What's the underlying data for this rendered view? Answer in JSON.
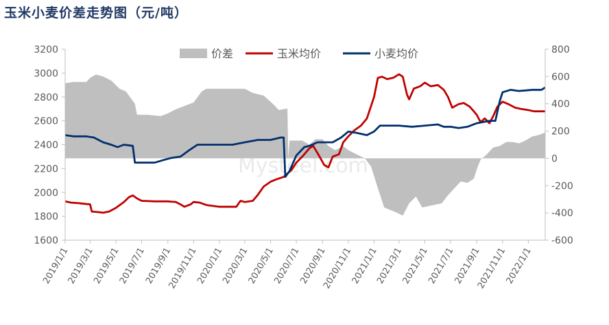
{
  "title": "玉米小麦价差走势图（元/吨）",
  "chart_data": {
    "type": "line",
    "title": "玉米小麦价差走势图（元/吨）",
    "watermark": "Mysteel.com",
    "x_tick_labels": [
      "2019/1/1",
      "2019/3/1",
      "2019/5/1",
      "2019/7/1",
      "2019/9/1",
      "2019/11/1",
      "2020/1/1",
      "2020/3/1",
      "2020/5/1",
      "2020/7/1",
      "2020/9/1",
      "2020/11/1",
      "2021/1/1",
      "2021/3/1",
      "2021/5/1",
      "2021/7/1",
      "2021/9/1",
      "2021/11/1",
      "2022/1/1"
    ],
    "x_range": [
      "2019-01-01",
      "2022-02-10"
    ],
    "y_left": {
      "range": [
        1600,
        3200
      ],
      "ticks": [
        1600,
        1800,
        2000,
        2200,
        2400,
        2600,
        2800,
        3000,
        3200
      ]
    },
    "y_right": {
      "range": [
        -600,
        800
      ],
      "ticks": [
        -600,
        -400,
        -200,
        0,
        200,
        400,
        600,
        800
      ]
    },
    "legend": {
      "position": "top",
      "entries": [
        "价差",
        "玉米均价",
        "小麦均价"
      ]
    },
    "grid": false,
    "series": [
      {
        "name": "价差",
        "type": "area",
        "axis": "right",
        "color": "#bfbfbf",
        "points": [
          [
            "2019-01-01",
            550
          ],
          [
            "2019-01-20",
            560
          ],
          [
            "2019-02-20",
            560
          ],
          [
            "2019-03-01",
            590
          ],
          [
            "2019-03-15",
            615
          ],
          [
            "2019-04-01",
            600
          ],
          [
            "2019-04-20",
            570
          ],
          [
            "2019-05-10",
            510
          ],
          [
            "2019-05-25",
            490
          ],
          [
            "2019-06-15",
            400
          ],
          [
            "2019-06-20",
            320
          ],
          [
            "2019-07-15",
            320
          ],
          [
            "2019-08-15",
            310
          ],
          [
            "2019-09-01",
            330
          ],
          [
            "2019-09-20",
            360
          ],
          [
            "2019-10-15",
            390
          ],
          [
            "2019-11-01",
            410
          ],
          [
            "2019-11-20",
            490
          ],
          [
            "2019-12-01",
            510
          ],
          [
            "2020-01-01",
            510
          ],
          [
            "2020-02-01",
            510
          ],
          [
            "2020-03-01",
            510
          ],
          [
            "2020-03-20",
            480
          ],
          [
            "2020-04-15",
            460
          ],
          [
            "2020-05-10",
            390
          ],
          [
            "2020-05-20",
            355
          ],
          [
            "2020-06-10",
            365
          ],
          [
            "2020-06-12",
            0
          ],
          [
            "2020-06-15",
            130
          ],
          [
            "2020-07-15",
            130
          ],
          [
            "2020-08-01",
            100
          ],
          [
            "2020-08-15",
            140
          ],
          [
            "2020-09-01",
            140
          ],
          [
            "2020-09-15",
            90
          ],
          [
            "2020-10-01",
            60
          ],
          [
            "2020-10-20",
            90
          ],
          [
            "2020-11-01",
            60
          ],
          [
            "2020-11-20",
            30
          ],
          [
            "2020-12-10",
            0
          ],
          [
            "2020-12-25",
            -60
          ],
          [
            "2021-01-10",
            -220
          ],
          [
            "2021-01-25",
            -360
          ],
          [
            "2021-02-10",
            -380
          ],
          [
            "2021-02-25",
            -400
          ],
          [
            "2021-03-10",
            -420
          ],
          [
            "2021-03-25",
            -330
          ],
          [
            "2021-04-10",
            -280
          ],
          [
            "2021-04-25",
            -360
          ],
          [
            "2021-05-10",
            -350
          ],
          [
            "2021-05-25",
            -340
          ],
          [
            "2021-06-10",
            -330
          ],
          [
            "2021-06-25",
            -270
          ],
          [
            "2021-07-10",
            -220
          ],
          [
            "2021-07-25",
            -170
          ],
          [
            "2021-08-10",
            -180
          ],
          [
            "2021-08-25",
            -150
          ],
          [
            "2021-09-01",
            -80
          ],
          [
            "2021-09-10",
            -10
          ],
          [
            "2021-09-25",
            30
          ],
          [
            "2021-10-10",
            80
          ],
          [
            "2021-10-25",
            90
          ],
          [
            "2021-11-10",
            120
          ],
          [
            "2021-11-25",
            120
          ],
          [
            "2021-12-10",
            110
          ],
          [
            "2021-12-25",
            130
          ],
          [
            "2022-01-10",
            160
          ],
          [
            "2022-01-25",
            170
          ],
          [
            "2022-02-10",
            190
          ]
        ]
      },
      {
        "name": "玉米均价",
        "type": "line",
        "axis": "left",
        "color": "#c00000",
        "points": [
          [
            "2019-01-01",
            1925
          ],
          [
            "2019-01-15",
            1915
          ],
          [
            "2019-02-01",
            1910
          ],
          [
            "2019-02-15",
            1905
          ],
          [
            "2019-03-01",
            1900
          ],
          [
            "2019-03-05",
            1840
          ],
          [
            "2019-03-20",
            1835
          ],
          [
            "2019-04-01",
            1830
          ],
          [
            "2019-04-15",
            1840
          ],
          [
            "2019-05-01",
            1870
          ],
          [
            "2019-05-20",
            1920
          ],
          [
            "2019-06-01",
            1960
          ],
          [
            "2019-06-10",
            1975
          ],
          [
            "2019-06-20",
            1950
          ],
          [
            "2019-07-01",
            1930
          ],
          [
            "2019-08-01",
            1925
          ],
          [
            "2019-09-01",
            1925
          ],
          [
            "2019-09-20",
            1920
          ],
          [
            "2019-10-01",
            1900
          ],
          [
            "2019-10-10",
            1880
          ],
          [
            "2019-10-25",
            1900
          ],
          [
            "2019-11-01",
            1920
          ],
          [
            "2019-11-15",
            1915
          ],
          [
            "2019-12-01",
            1895
          ],
          [
            "2020-01-01",
            1880
          ],
          [
            "2020-02-01",
            1880
          ],
          [
            "2020-02-10",
            1880
          ],
          [
            "2020-02-20",
            1930
          ],
          [
            "2020-03-01",
            1920
          ],
          [
            "2020-03-20",
            1930
          ],
          [
            "2020-04-01",
            1980
          ],
          [
            "2020-04-15",
            2050
          ],
          [
            "2020-05-01",
            2090
          ],
          [
            "2020-05-15",
            2110
          ],
          [
            "2020-06-01",
            2130
          ],
          [
            "2020-06-20",
            2190
          ],
          [
            "2020-07-01",
            2250
          ],
          [
            "2020-07-15",
            2300
          ],
          [
            "2020-08-01",
            2370
          ],
          [
            "2020-08-10",
            2390
          ],
          [
            "2020-08-25",
            2300
          ],
          [
            "2020-09-05",
            2230
          ],
          [
            "2020-09-15",
            2210
          ],
          [
            "2020-09-25",
            2300
          ],
          [
            "2020-10-10",
            2320
          ],
          [
            "2020-10-20",
            2420
          ],
          [
            "2020-11-01",
            2470
          ],
          [
            "2020-11-15",
            2520
          ],
          [
            "2020-12-01",
            2560
          ],
          [
            "2020-12-15",
            2620
          ],
          [
            "2021-01-01",
            2800
          ],
          [
            "2021-01-10",
            2960
          ],
          [
            "2021-01-20",
            2970
          ],
          [
            "2021-02-01",
            2950
          ],
          [
            "2021-02-15",
            2960
          ],
          [
            "2021-03-01",
            2990
          ],
          [
            "2021-03-10",
            2970
          ],
          [
            "2021-03-20",
            2820
          ],
          [
            "2021-03-25",
            2780
          ],
          [
            "2021-04-05",
            2870
          ],
          [
            "2021-04-20",
            2890
          ],
          [
            "2021-05-01",
            2920
          ],
          [
            "2021-05-15",
            2890
          ],
          [
            "2021-06-01",
            2900
          ],
          [
            "2021-06-15",
            2860
          ],
          [
            "2021-06-25",
            2800
          ],
          [
            "2021-07-05",
            2710
          ],
          [
            "2021-07-20",
            2740
          ],
          [
            "2021-08-01",
            2750
          ],
          [
            "2021-08-15",
            2720
          ],
          [
            "2021-08-25",
            2680
          ],
          [
            "2021-09-01",
            2650
          ],
          [
            "2021-09-10",
            2590
          ],
          [
            "2021-09-20",
            2620
          ],
          [
            "2021-10-01",
            2580
          ],
          [
            "2021-10-10",
            2640
          ],
          [
            "2021-10-20",
            2720
          ],
          [
            "2021-11-01",
            2760
          ],
          [
            "2021-11-15",
            2740
          ],
          [
            "2021-12-01",
            2710
          ],
          [
            "2021-12-15",
            2700
          ],
          [
            "2022-01-01",
            2690
          ],
          [
            "2022-01-15",
            2680
          ],
          [
            "2022-02-10",
            2680
          ]
        ]
      },
      {
        "name": "小麦均价",
        "type": "line",
        "axis": "left",
        "color": "#002f6c",
        "points": [
          [
            "2019-01-01",
            2480
          ],
          [
            "2019-01-20",
            2470
          ],
          [
            "2019-02-20",
            2470
          ],
          [
            "2019-03-10",
            2460
          ],
          [
            "2019-04-01",
            2420
          ],
          [
            "2019-04-20",
            2400
          ],
          [
            "2019-05-05",
            2380
          ],
          [
            "2019-05-20",
            2400
          ],
          [
            "2019-06-10",
            2390
          ],
          [
            "2019-06-15",
            2250
          ],
          [
            "2019-07-01",
            2250
          ],
          [
            "2019-08-01",
            2250
          ],
          [
            "2019-08-20",
            2270
          ],
          [
            "2019-09-10",
            2290
          ],
          [
            "2019-10-01",
            2300
          ],
          [
            "2019-10-20",
            2350
          ],
          [
            "2019-11-10",
            2400
          ],
          [
            "2019-12-01",
            2400
          ],
          [
            "2020-01-01",
            2400
          ],
          [
            "2020-02-01",
            2400
          ],
          [
            "2020-03-01",
            2420
          ],
          [
            "2020-04-01",
            2440
          ],
          [
            "2020-05-01",
            2440
          ],
          [
            "2020-05-25",
            2460
          ],
          [
            "2020-06-01",
            2460
          ],
          [
            "2020-06-05",
            2130
          ],
          [
            "2020-06-15",
            2180
          ],
          [
            "2020-07-01",
            2310
          ],
          [
            "2020-07-20",
            2380
          ],
          [
            "2020-08-01",
            2390
          ],
          [
            "2020-08-20",
            2420
          ],
          [
            "2020-09-10",
            2420
          ],
          [
            "2020-09-25",
            2420
          ],
          [
            "2020-10-15",
            2460
          ],
          [
            "2020-11-01",
            2510
          ],
          [
            "2020-11-20",
            2500
          ],
          [
            "2020-12-15",
            2480
          ],
          [
            "2021-01-01",
            2510
          ],
          [
            "2021-01-15",
            2560
          ],
          [
            "2021-03-01",
            2560
          ],
          [
            "2021-04-01",
            2550
          ],
          [
            "2021-05-01",
            2560
          ],
          [
            "2021-06-01",
            2570
          ],
          [
            "2021-06-15",
            2550
          ],
          [
            "2021-07-01",
            2550
          ],
          [
            "2021-07-20",
            2540
          ],
          [
            "2021-08-10",
            2550
          ],
          [
            "2021-09-01",
            2580
          ],
          [
            "2021-10-01",
            2600
          ],
          [
            "2021-10-15",
            2600
          ],
          [
            "2021-10-25",
            2760
          ],
          [
            "2021-11-01",
            2840
          ],
          [
            "2021-11-20",
            2860
          ],
          [
            "2021-12-10",
            2850
          ],
          [
            "2022-01-10",
            2860
          ],
          [
            "2022-02-01",
            2860
          ],
          [
            "2022-02-10",
            2880
          ]
        ]
      }
    ]
  }
}
